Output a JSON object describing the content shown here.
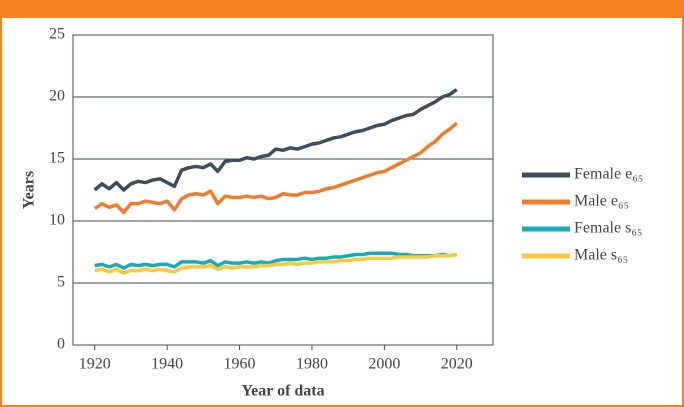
{
  "chart_data": {
    "type": "line",
    "x_label": "Year of data",
    "y_label": "Years",
    "x": [
      1920,
      1922,
      1924,
      1926,
      1928,
      1930,
      1932,
      1934,
      1936,
      1938,
      1940,
      1942,
      1944,
      1946,
      1948,
      1950,
      1952,
      1954,
      1956,
      1958,
      1960,
      1962,
      1964,
      1966,
      1968,
      1970,
      1972,
      1974,
      1976,
      1978,
      1980,
      1982,
      1984,
      1986,
      1988,
      1990,
      1992,
      1994,
      1996,
      1998,
      2000,
      2002,
      2004,
      2006,
      2008,
      2010,
      2012,
      2014,
      2016,
      2018,
      2020
    ],
    "series": [
      {
        "name": "Female e₆₅",
        "color": "#3c4e5b",
        "values": [
          12.5,
          13.0,
          12.6,
          13.1,
          12.5,
          13.0,
          13.2,
          13.1,
          13.3,
          13.4,
          13.1,
          12.8,
          14.1,
          14.3,
          14.4,
          14.3,
          14.6,
          14.0,
          14.8,
          14.9,
          14.9,
          15.1,
          15.0,
          15.2,
          15.3,
          15.8,
          15.7,
          15.9,
          15.8,
          16.0,
          16.2,
          16.3,
          16.5,
          16.7,
          16.8,
          17.0,
          17.2,
          17.3,
          17.5,
          17.7,
          17.8,
          18.1,
          18.3,
          18.5,
          18.6,
          19.0,
          19.3,
          19.6,
          20.0,
          20.2,
          20.6
        ]
      },
      {
        "name": "Male e₆₅",
        "color": "#f07c2a",
        "values": [
          11.0,
          11.4,
          11.1,
          11.3,
          10.7,
          11.4,
          11.4,
          11.6,
          11.5,
          11.4,
          11.6,
          10.9,
          11.8,
          12.1,
          12.2,
          12.1,
          12.4,
          11.4,
          12.0,
          11.9,
          11.9,
          12.0,
          11.9,
          12.0,
          11.8,
          11.9,
          12.2,
          12.1,
          12.1,
          12.3,
          12.3,
          12.4,
          12.6,
          12.7,
          12.9,
          13.1,
          13.3,
          13.5,
          13.7,
          13.9,
          14.0,
          14.3,
          14.6,
          14.9,
          15.2,
          15.5,
          16.0,
          16.4,
          17.0,
          17.4,
          17.9
        ]
      },
      {
        "name": "Female s₆₅",
        "color": "#17abb5",
        "values": [
          6.4,
          6.5,
          6.3,
          6.5,
          6.2,
          6.5,
          6.4,
          6.5,
          6.4,
          6.5,
          6.5,
          6.3,
          6.7,
          6.7,
          6.7,
          6.6,
          6.8,
          6.4,
          6.7,
          6.6,
          6.6,
          6.7,
          6.6,
          6.7,
          6.6,
          6.8,
          6.9,
          6.9,
          6.9,
          7.0,
          6.9,
          7.0,
          7.0,
          7.1,
          7.1,
          7.2,
          7.3,
          7.3,
          7.4,
          7.4,
          7.4,
          7.4,
          7.3,
          7.3,
          7.2,
          7.2,
          7.2,
          7.2,
          7.3,
          7.2,
          7.3
        ]
      },
      {
        "name": "Male s₆₅",
        "color": "#f9c93c",
        "values": [
          6.0,
          6.1,
          5.9,
          6.1,
          5.8,
          6.0,
          6.0,
          6.1,
          6.0,
          6.1,
          6.0,
          5.9,
          6.2,
          6.3,
          6.3,
          6.3,
          6.4,
          6.1,
          6.3,
          6.2,
          6.3,
          6.3,
          6.3,
          6.4,
          6.4,
          6.5,
          6.5,
          6.6,
          6.5,
          6.6,
          6.6,
          6.7,
          6.7,
          6.7,
          6.8,
          6.8,
          6.9,
          6.9,
          7.0,
          7.0,
          7.0,
          7.0,
          7.1,
          7.1,
          7.1,
          7.1,
          7.1,
          7.2,
          7.2,
          7.2,
          7.3
        ]
      }
    ],
    "xlim": [
      1914,
      2030
    ],
    "xticks": [
      1920,
      1940,
      1960,
      1980,
      2000,
      2020
    ],
    "ylim": [
      0,
      25
    ],
    "yticks": [
      0,
      5,
      10,
      15,
      20,
      25
    ],
    "grid": true,
    "legend": "right"
  }
}
